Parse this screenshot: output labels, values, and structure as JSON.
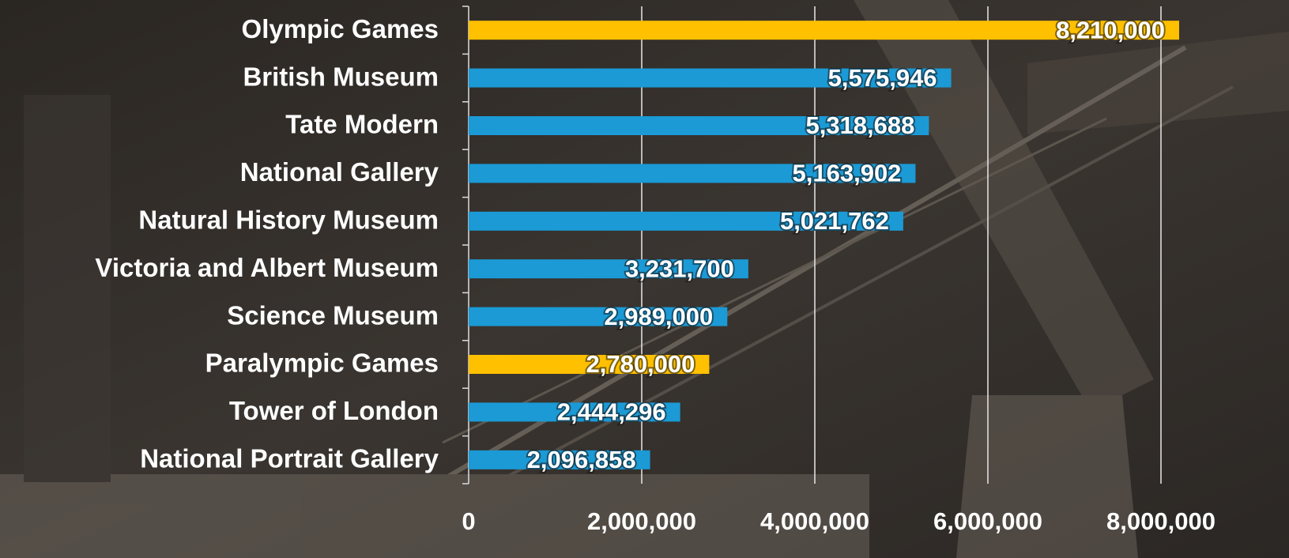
{
  "chart_data": {
    "type": "bar",
    "orientation": "horizontal",
    "categories": [
      "Olympic Games",
      "British Museum",
      "Tate Modern",
      "National Gallery",
      "Natural History Museum",
      "Victoria and Albert Museum",
      "Science Museum",
      "Paralympic Games",
      "Tower of London",
      "National Portrait Gallery"
    ],
    "values": [
      8210000,
      5575946,
      5318688,
      5163902,
      5021762,
      3231700,
      2989000,
      2780000,
      2444296,
      2096858
    ],
    "value_labels": [
      "8,210,000",
      "5,575,946",
      "5,318,688",
      "5,163,902",
      "5,021,762",
      "3,231,700",
      "2,989,000",
      "2,780,000",
      "2,444,296",
      "2,096,858"
    ],
    "colors": [
      "#ffc000",
      "#1b9ad6",
      "#1b9ad6",
      "#1b9ad6",
      "#1b9ad6",
      "#1b9ad6",
      "#1b9ad6",
      "#ffc000",
      "#1b9ad6",
      "#1b9ad6"
    ],
    "xlim": [
      0,
      9000000
    ],
    "xticks": [
      0,
      {
        "value": 2000000,
        "label": "2,000,000"
      },
      {
        "value": 4000000,
        "label": "4,000,000"
      },
      {
        "value": 6000000,
        "label": "6,000,000"
      },
      {
        "value": 8000000,
        "label": "8,000,000"
      }
    ],
    "grid": true
  }
}
